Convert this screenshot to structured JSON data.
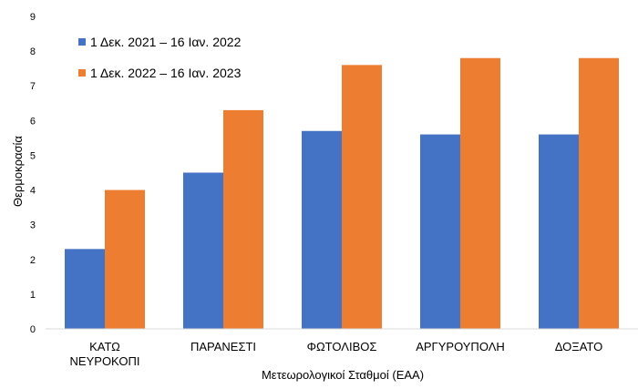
{
  "chart_data": {
    "type": "bar",
    "title": "",
    "xlabel": "Μετεωρολογικοί Σταθμοί (ΕΑΑ)",
    "ylabel": "Θερμοκρασία",
    "ylim": [
      0,
      9
    ],
    "yticks": [
      0,
      1,
      2,
      3,
      4,
      5,
      6,
      7,
      8,
      9
    ],
    "grid": false,
    "legend_position": "top-left",
    "categories": [
      [
        "ΚΑΤΩ",
        "ΝΕΥΡΟΚΟΠΙ"
      ],
      [
        "ΠΑΡΑΝΕΣΤΙ"
      ],
      [
        "ΦΩΤΟΛΙΒΟΣ"
      ],
      [
        "ΑΡΓΥΡΟΥΠΟΛΗ"
      ],
      [
        "ΔΟΞΑΤΟ"
      ]
    ],
    "series": [
      {
        "name": "1 Δεκ. 2021 – 16 Ιαν. 2022",
        "color": "#4472C4",
        "values": [
          2.3,
          4.5,
          5.7,
          5.6,
          5.6
        ]
      },
      {
        "name": "1 Δεκ. 2022 – 16 Ιαν. 2023",
        "color": "#ED7D31",
        "values": [
          4.0,
          6.3,
          7.6,
          7.8,
          7.8
        ]
      }
    ]
  }
}
